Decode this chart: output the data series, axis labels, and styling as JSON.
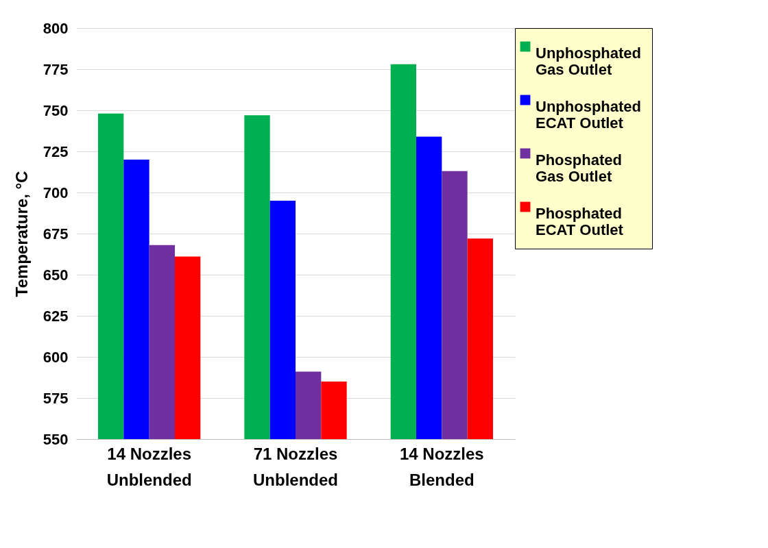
{
  "chart_data": {
    "type": "bar",
    "ylabel": "Temperature, °C",
    "categories": [
      "14 Nozzles Unblended",
      "71 Nozzles Unblended",
      "14 Nozzles Blended"
    ],
    "series": [
      {
        "name": "Unphosphated Gas Outlet",
        "color": "#00b050",
        "values": [
          748,
          747,
          778
        ]
      },
      {
        "name": "Unphosphated ECAT Outlet",
        "color": "#0000ff",
        "values": [
          720,
          695,
          734
        ]
      },
      {
        "name": "Phosphated Gas Outlet",
        "color": "#7030a0",
        "values": [
          668,
          591,
          713
        ]
      },
      {
        "name": "Phosphated ECAT Outlet",
        "color": "#ff0000",
        "values": [
          661,
          585,
          672
        ]
      }
    ],
    "ylim": [
      550,
      800
    ],
    "yticks": [
      550,
      575,
      600,
      625,
      650,
      675,
      700,
      725,
      750,
      775,
      800
    ],
    "grid": "y",
    "legend": "right"
  }
}
